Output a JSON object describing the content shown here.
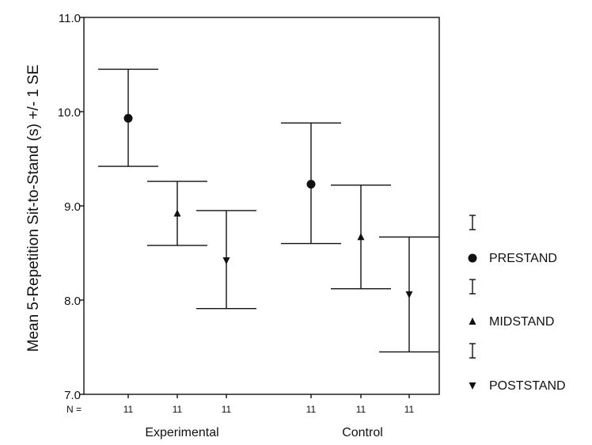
{
  "chart_data": {
    "type": "scatter",
    "ylabel": "Mean 5-Repetition Sit-to-Stand (s) +/- 1 SE",
    "ylim": [
      7.0,
      11.0
    ],
    "yticks": [
      "7.0",
      "8.0",
      "9.0",
      "10.0",
      "11.0"
    ],
    "n_prefix": "N =",
    "groups": [
      "Experimental",
      "Control"
    ],
    "series": [
      {
        "name": "PRESTAND",
        "marker": "circle",
        "values": [
          9.93,
          9.23
        ],
        "lower": [
          9.42,
          8.6
        ],
        "upper": [
          10.45,
          9.88
        ],
        "n": [
          "11",
          "11"
        ]
      },
      {
        "name": "MIDSTAND",
        "marker": "triangle-up",
        "values": [
          8.92,
          8.67
        ],
        "lower": [
          8.58,
          8.12
        ],
        "upper": [
          9.26,
          9.22
        ],
        "n": [
          "11",
          "11"
        ]
      },
      {
        "name": "POSTSTAND",
        "marker": "triangle-down",
        "values": [
          8.42,
          8.06
        ],
        "lower": [
          7.91,
          7.45
        ],
        "upper": [
          8.95,
          8.67
        ],
        "n": [
          "11",
          "11"
        ]
      }
    ],
    "legend_position": "right",
    "grid": false
  }
}
